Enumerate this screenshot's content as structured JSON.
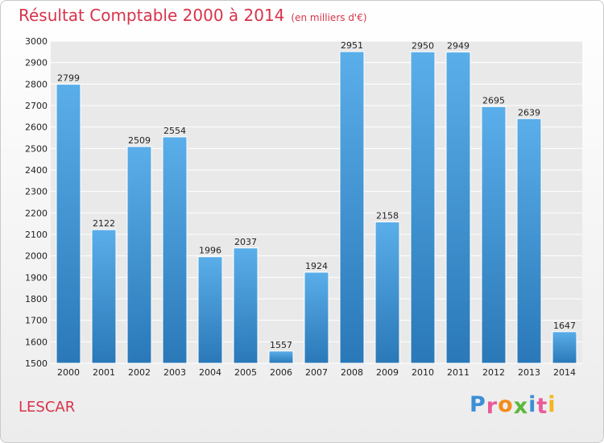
{
  "chart_data": {
    "type": "bar",
    "title": "Résultat Comptable 2000 à 2014",
    "subtitle": "(en milliers d'€)",
    "categories": [
      "2000",
      "2001",
      "2002",
      "2003",
      "2004",
      "2005",
      "2006",
      "2007",
      "2008",
      "2009",
      "2010",
      "2011",
      "2012",
      "2013",
      "2014"
    ],
    "values": [
      2799,
      2122,
      2509,
      2554,
      1996,
      2037,
      1557,
      1924,
      2951,
      2158,
      2950,
      2949,
      2695,
      2639,
      1647
    ],
    "ylim": [
      1500,
      3000
    ],
    "yticks": [
      1500,
      1600,
      1700,
      1800,
      1900,
      2000,
      2100,
      2200,
      2300,
      2400,
      2500,
      2600,
      2700,
      2800,
      2900,
      3000
    ],
    "grid": true,
    "bar_color_top": "#5aaee9",
    "bar_color_bottom": "#2a78b8"
  },
  "place_name": "LESCAR",
  "logo": {
    "text": "Proxiti",
    "letters": [
      {
        "ch": "P",
        "color": "#3b8fd6"
      },
      {
        "ch": "r",
        "color": "#e85b9a"
      },
      {
        "ch": "o",
        "color": "#f28c1c"
      },
      {
        "ch": "x",
        "color": "#5bb83a"
      },
      {
        "ch": "i",
        "color": "#3b8fd6"
      },
      {
        "ch": "t",
        "color": "#e85b9a"
      },
      {
        "ch": "i",
        "color": "#f2b51c"
      }
    ]
  }
}
